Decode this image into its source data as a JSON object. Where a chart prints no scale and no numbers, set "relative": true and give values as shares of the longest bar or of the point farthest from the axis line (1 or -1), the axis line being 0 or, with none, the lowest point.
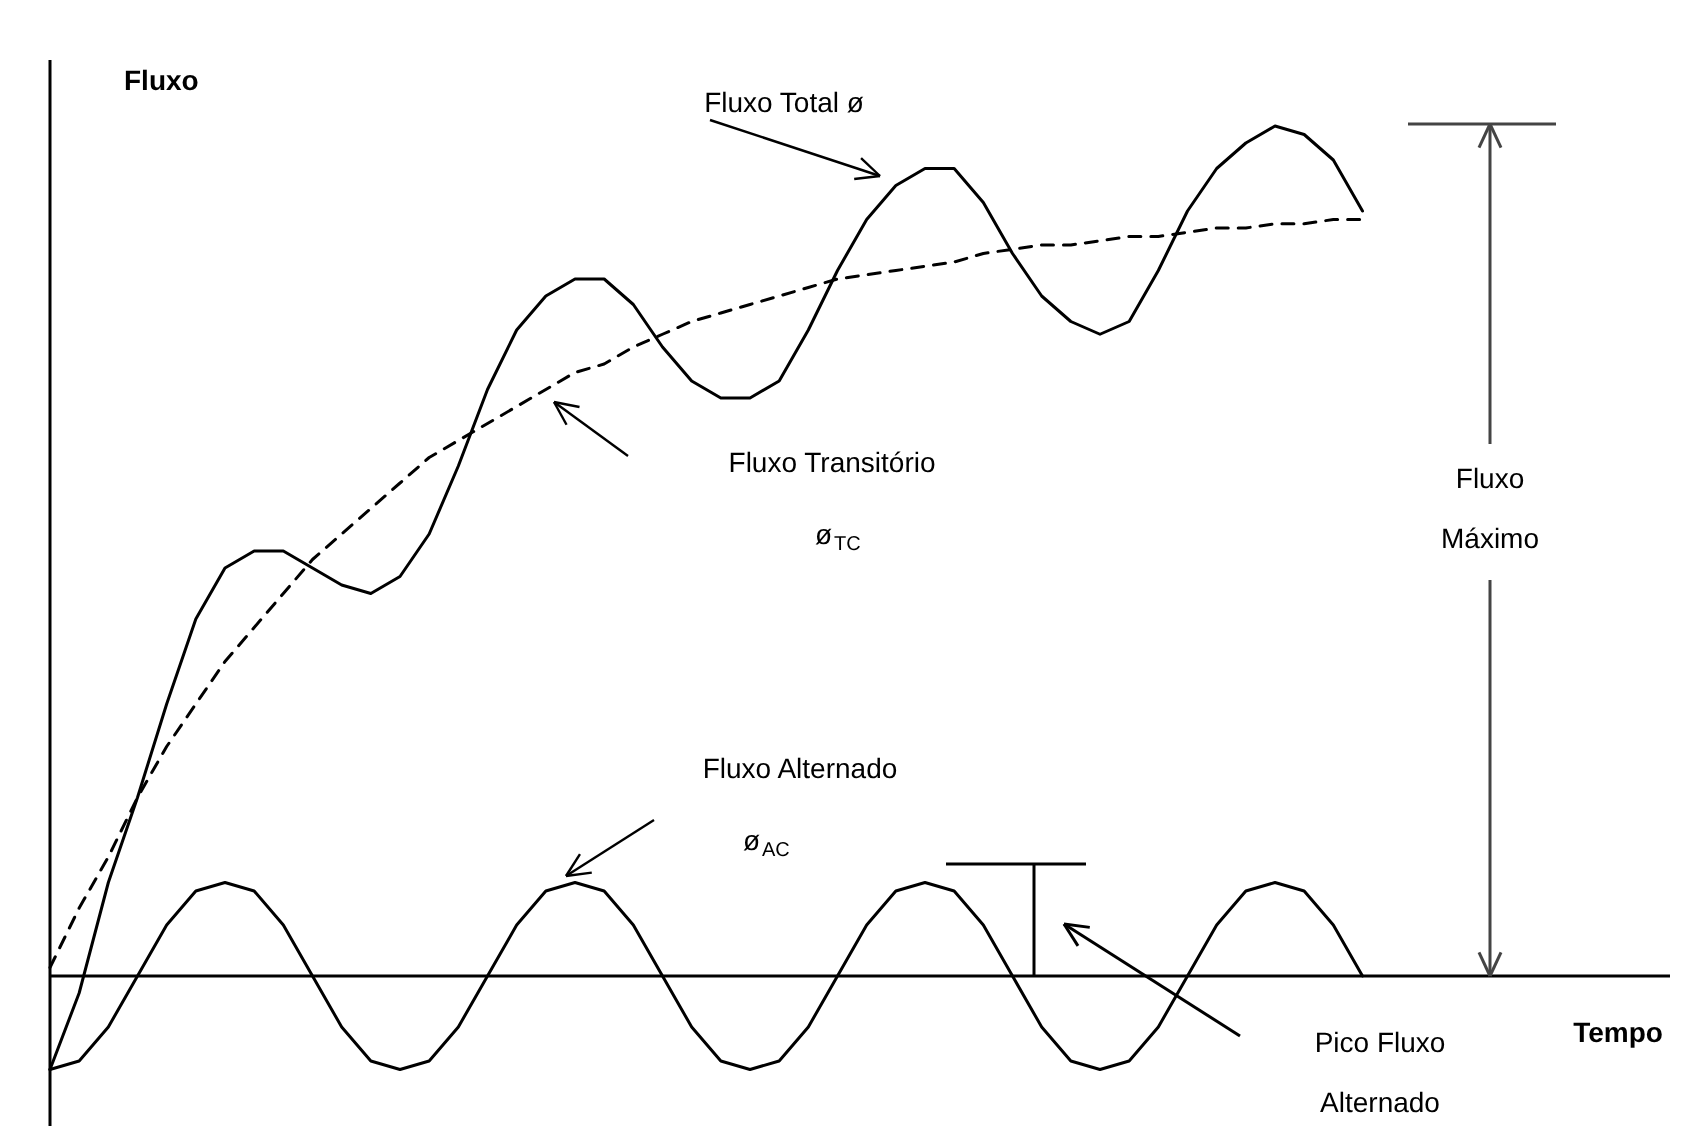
{
  "chart_data": {
    "type": "line",
    "relative": true,
    "ylabel": "Fluxo",
    "categories": [
      null,
      null,
      null,
      null,
      null,
      null,
      null,
      null,
      null,
      null,
      null,
      null,
      null,
      null,
      null,
      null,
      null,
      null,
      null,
      null,
      null,
      null,
      null,
      null,
      null,
      null,
      null,
      null,
      null,
      null,
      null,
      null,
      null,
      null,
      null,
      null,
      null,
      null,
      null,
      null,
      null,
      null,
      null,
      null,
      null,
      null
    ],
    "series": [
      {
        "name": "Fluxo Total ø",
        "color": "#000000",
        "line_style": "solid",
        "values": [
          -0.11,
          -0.02,
          0.11,
          0.21,
          0.32,
          0.42,
          0.48,
          0.5,
          0.5,
          0.48,
          0.46,
          0.45,
          0.47,
          0.52,
          0.6,
          0.69,
          0.76,
          0.8,
          0.82,
          0.82,
          0.79,
          0.74,
          0.7,
          0.68,
          0.68,
          0.7,
          0.76,
          0.83,
          0.89,
          0.93,
          0.95,
          0.95,
          0.91,
          0.85,
          0.8,
          0.77,
          0.755,
          0.77,
          0.83,
          0.9,
          0.95,
          0.98,
          1.0,
          0.99,
          0.96,
          0.9
        ]
      },
      {
        "name": "Fluxo Transitório ø$_{TC}$",
        "color": "#000000",
        "line_style": "dashed",
        "values": [
          0.01,
          0.08,
          0.14,
          0.21,
          0.27,
          0.32,
          0.37,
          0.41,
          0.45,
          0.49,
          0.52,
          0.55,
          0.58,
          0.61,
          0.63,
          0.65,
          0.67,
          0.69,
          0.71,
          0.72,
          0.74,
          0.755,
          0.77,
          0.78,
          0.79,
          0.8,
          0.81,
          0.82,
          0.825,
          0.83,
          0.835,
          0.84,
          0.85,
          0.855,
          0.86,
          0.86,
          0.865,
          0.87,
          0.87,
          0.875,
          0.88,
          0.88,
          0.885,
          0.885,
          0.89,
          0.89
        ]
      },
      {
        "name": "Fluxo Alternado ø$_{AC}$",
        "color": "#000000",
        "line_style": "solid",
        "values": [
          -0.11,
          -0.1,
          -0.06,
          0,
          0.06,
          0.1,
          0.11,
          0.1,
          0.06,
          0,
          -0.06,
          -0.1,
          -0.11,
          -0.1,
          -0.06,
          0,
          0.06,
          0.1,
          0.11,
          0.1,
          0.06,
          0,
          -0.06,
          -0.1,
          -0.11,
          -0.1,
          -0.06,
          0,
          0.06,
          0.1,
          0.11,
          0.1,
          0.06,
          0,
          -0.06,
          -0.1,
          -0.11,
          -0.1,
          -0.06,
          0,
          0.06,
          0.1,
          0.11,
          0.1,
          0.06,
          0
        ]
      }
    ],
    "annotations": [
      "Fluxo Máximo",
      "Pico Fluxo Alternado",
      "Tempo"
    ]
  }
}
